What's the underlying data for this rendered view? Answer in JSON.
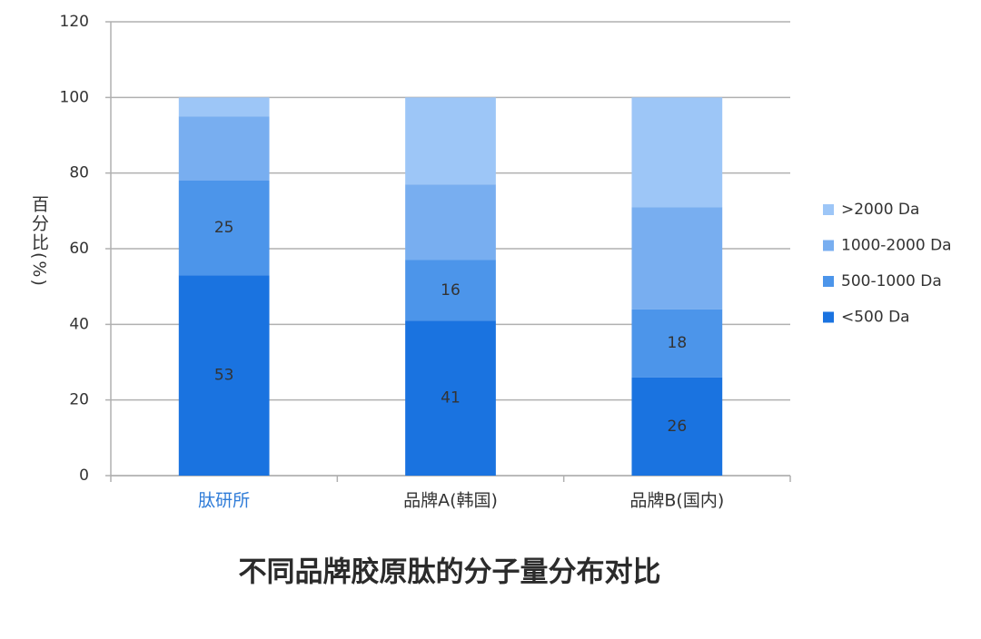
{
  "chart_data": {
    "type": "stacked_bar",
    "title": "不同品牌胶原肽的分子量分布对比",
    "ylabel": "百分比(%)",
    "categories": [
      "肽研所",
      "品牌A(韩国)",
      "品牌B(国内)"
    ],
    "category_label_colors": [
      "#2f7cd8",
      "#333333",
      "#333333"
    ],
    "series": [
      {
        "name": "<500 Da",
        "color": "#1a73e0",
        "values": [
          53,
          41,
          26
        ],
        "labels": true
      },
      {
        "name": "500-1000 Da",
        "color": "#4c95ea",
        "values": [
          25,
          16,
          18
        ],
        "labels": true
      },
      {
        "name": "1000-2000 Da",
        "color": "#78aef0",
        "values": [
          17,
          20,
          27
        ],
        "labels": false
      },
      {
        "name": ">2000 Da",
        "color": "#9dc6f7",
        "values": [
          5,
          23,
          29
        ],
        "labels": false
      }
    ],
    "ylim": [
      0,
      120
    ],
    "yticks": [
      0,
      20,
      40,
      60,
      80,
      100,
      120
    ],
    "grid": true,
    "legend": "right"
  }
}
